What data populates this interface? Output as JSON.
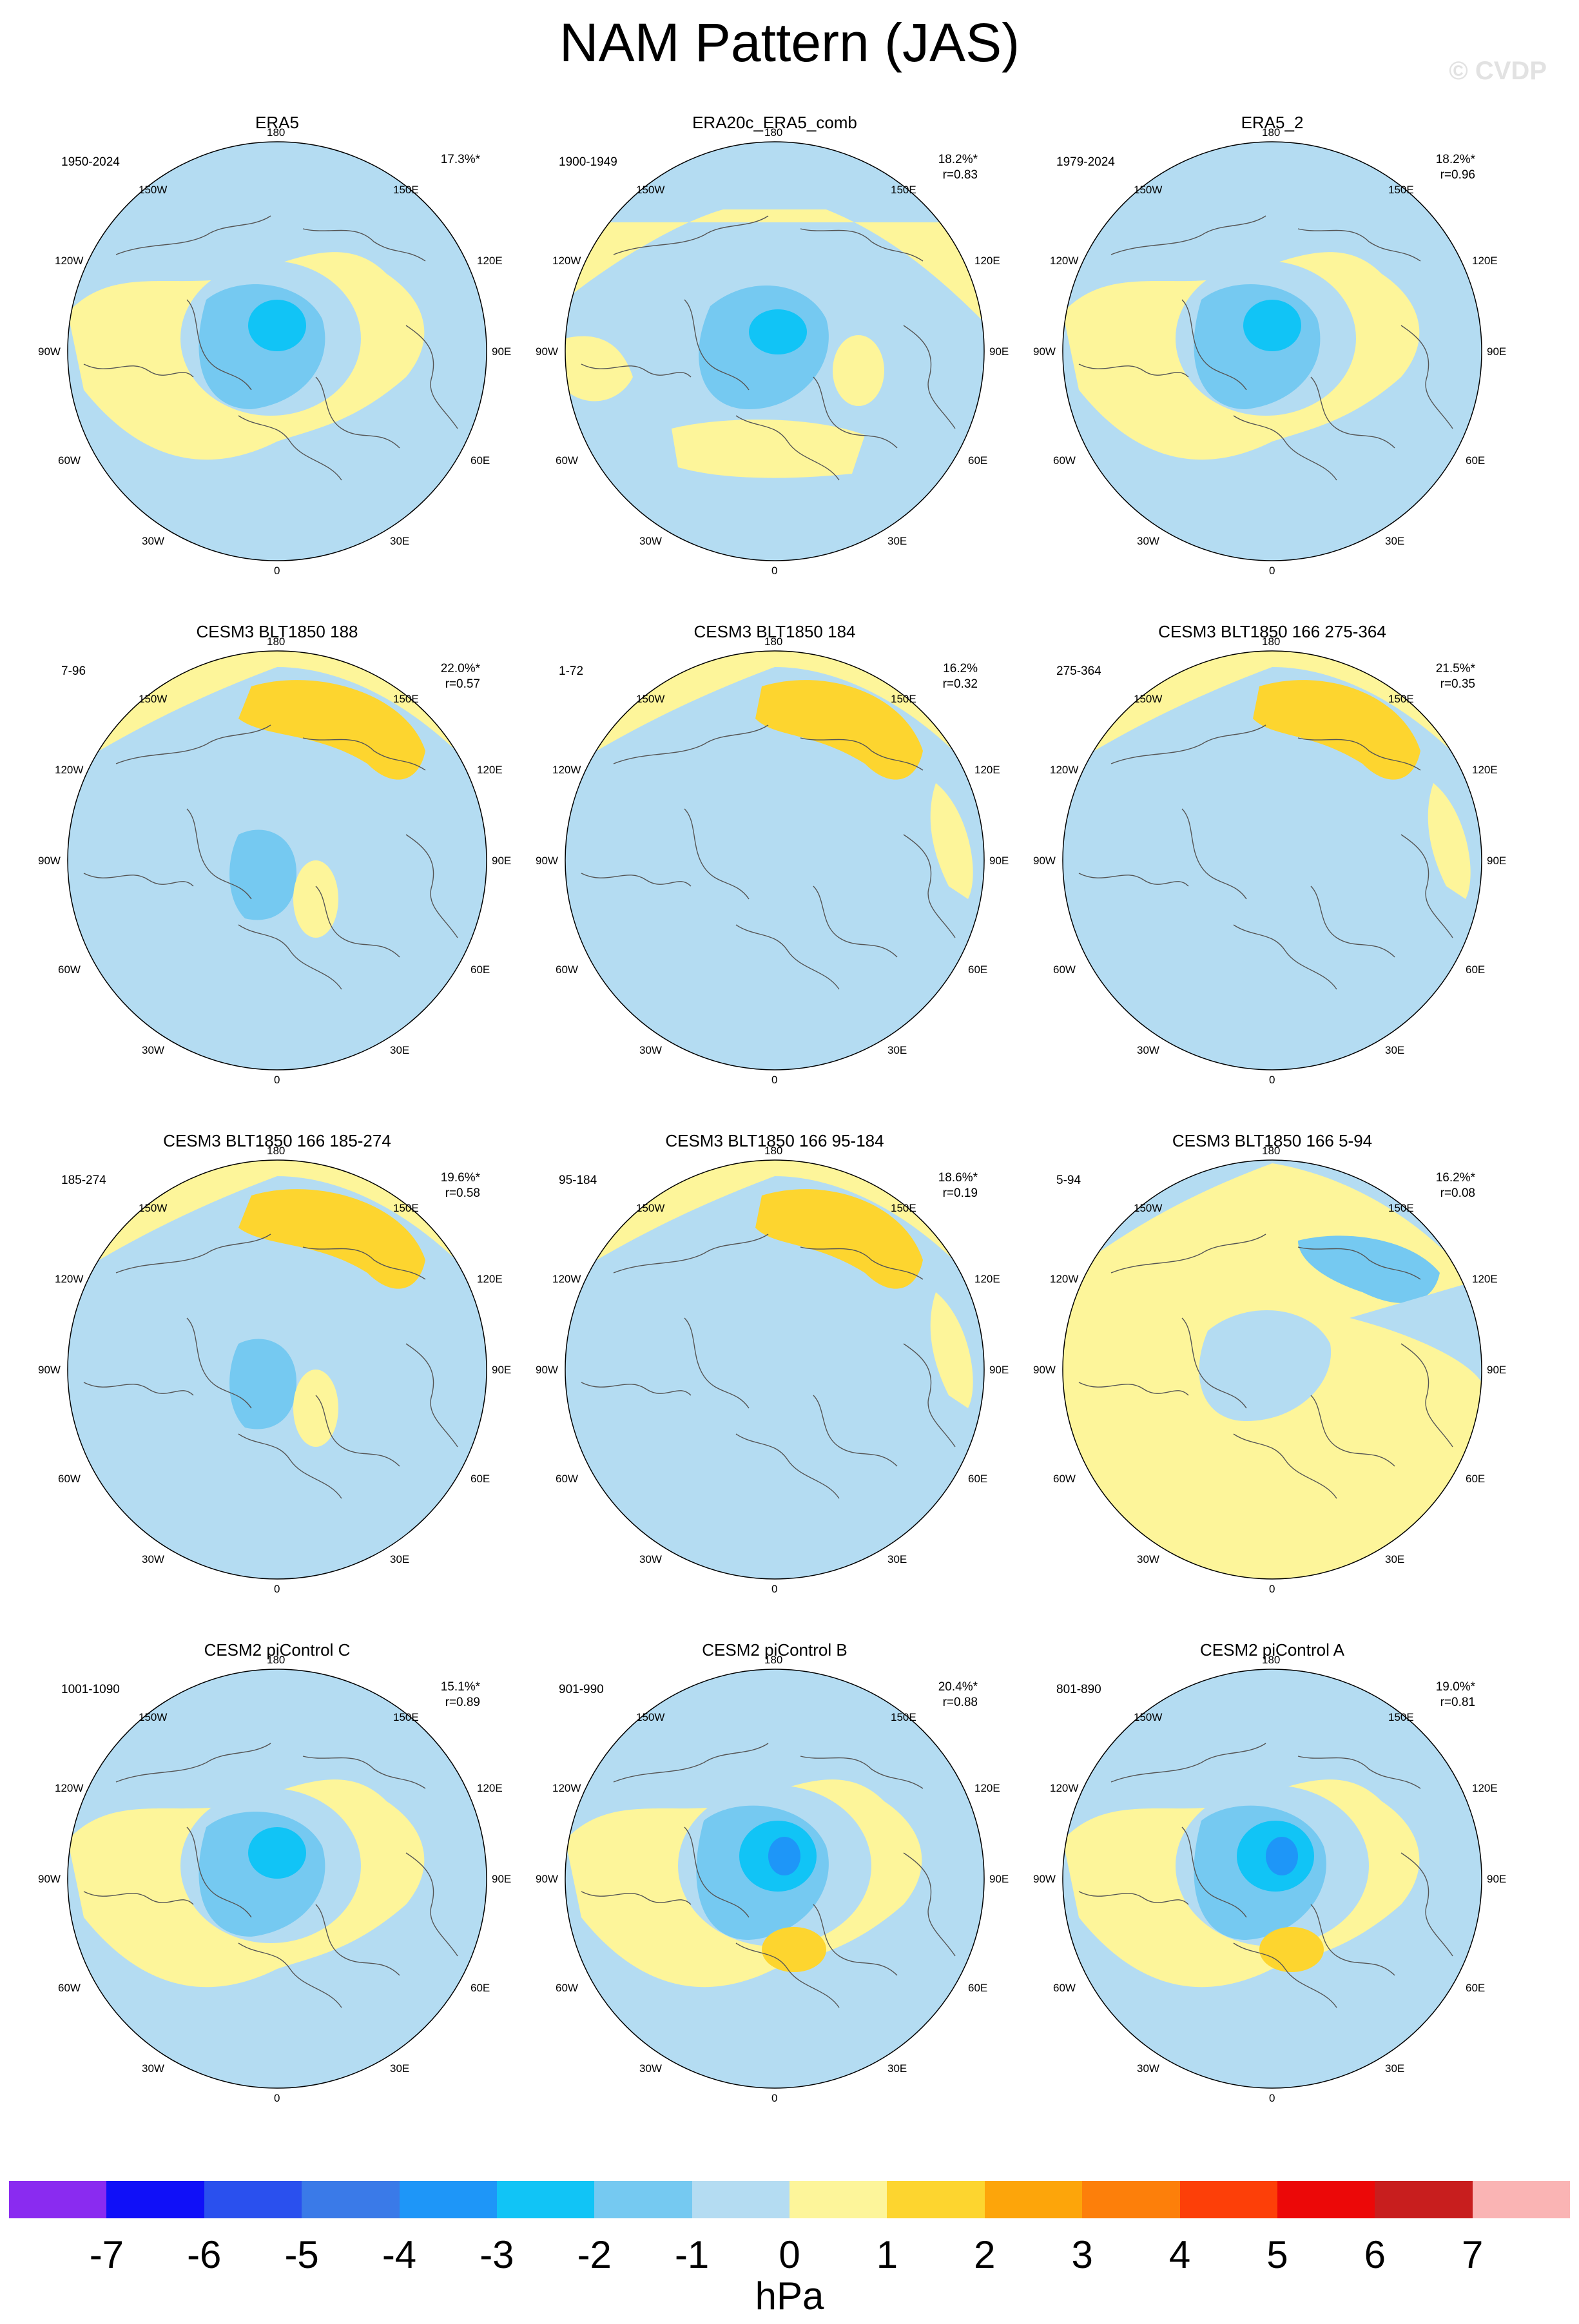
{
  "title": "NAM Pattern (JAS)",
  "watermark": "© CVDP",
  "colors": {
    "ocean_neg1": "#b4dcf2",
    "neg2": "#75c9f1",
    "neg3": "#11c4f6",
    "neg4": "#1e96f8",
    "pos1": "#fdf59a",
    "pos2": "#fdd52f",
    "coast": "#555555"
  },
  "lon_labels": {
    "top": "180",
    "bottom": "0",
    "left_mid": "90W",
    "right_mid": "90E",
    "l_top1": "150W",
    "l_top2": "120W",
    "l_bot1": "60W",
    "l_bot2": "30W",
    "r_top1": "150E",
    "r_top2": "120E",
    "r_bot1": "60E",
    "r_bot2": "30E"
  },
  "panels": [
    {
      "title": "ERA5",
      "years": "1950-2024",
      "pct": "17.3%*",
      "r": "",
      "pattern": "ref"
    },
    {
      "title": "ERA20c_ERA5_comb",
      "years": "1900-1949",
      "pct": "18.2%*",
      "r": "r=0.83",
      "pattern": "era20"
    },
    {
      "title": "ERA5_2",
      "years": "1979-2024",
      "pct": "18.2%*",
      "r": "r=0.96",
      "pattern": "ref"
    },
    {
      "title": "CESM3 BLT1850 188",
      "years": "7-96",
      "pct": "22.0%*",
      "r": "r=0.57",
      "pattern": "cesm3a"
    },
    {
      "title": "CESM3 BLT1850 184",
      "years": "1-72",
      "pct": "16.2%",
      "r": "r=0.32",
      "pattern": "cesm3b"
    },
    {
      "title": "CESM3 BLT1850 166 275-364",
      "years": "275-364",
      "pct": "21.5%*",
      "r": "r=0.35",
      "pattern": "cesm3b"
    },
    {
      "title": "CESM3 BLT1850 166 185-274",
      "years": "185-274",
      "pct": "19.6%*",
      "r": "r=0.58",
      "pattern": "cesm3a"
    },
    {
      "title": "CESM3 BLT1850 166 95-184",
      "years": "95-184",
      "pct": "18.6%*",
      "r": "r=0.19",
      "pattern": "cesm3b"
    },
    {
      "title": "CESM3 BLT1850 166 5-94",
      "years": "5-94",
      "pct": "16.2%*",
      "r": "r=0.08",
      "pattern": "inverse"
    },
    {
      "title": "CESM2 piControl C",
      "years": "1001-1090",
      "pct": "15.1%*",
      "r": "r=0.89",
      "pattern": "ref"
    },
    {
      "title": "CESM2 piControl B",
      "years": "901-990",
      "pct": "20.4%*",
      "r": "r=0.88",
      "pattern": "cesm2"
    },
    {
      "title": "CESM2 piControl A",
      "years": "801-890",
      "pct": "19.0%*",
      "r": "r=0.81",
      "pattern": "cesm2"
    }
  ],
  "colorbar": {
    "colors": [
      "#8a2bf0",
      "#1010f8",
      "#2a50ee",
      "#3a7ae8",
      "#1e96f8",
      "#11c4f6",
      "#75c9f1",
      "#b4dcf2",
      "#fdf59a",
      "#fdd52f",
      "#fda50a",
      "#fd7f0a",
      "#fd3f08",
      "#ec0808",
      "#c81e1e",
      "#fab4b4"
    ],
    "labels": [
      "-7",
      "-6",
      "-5",
      "-4",
      "-3",
      "-2",
      "-1",
      "0",
      "1",
      "2",
      "3",
      "4",
      "5",
      "6",
      "7"
    ],
    "units": "hPa"
  }
}
